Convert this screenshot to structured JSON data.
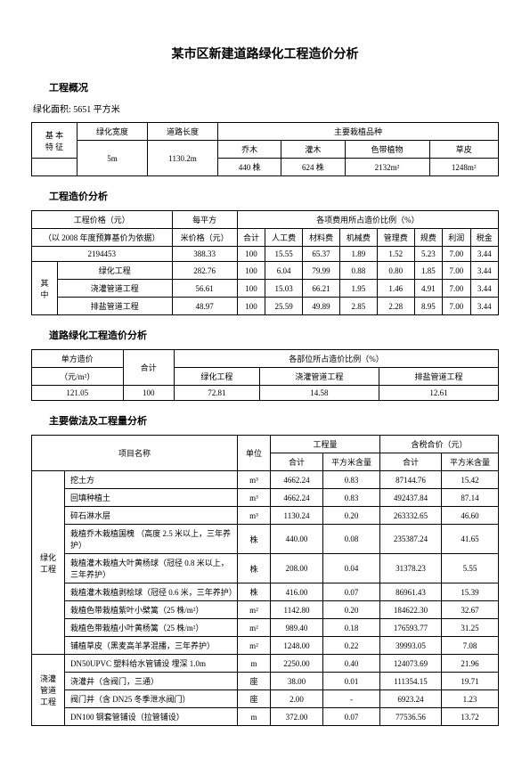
{
  "title": "某市区新建道路绿化工程造价分析",
  "sec1": {
    "heading": "工程概况",
    "areaLine": "绿化面积: 5651 平方米",
    "h_basic": "基 本\n特 征",
    "h_width": "绿化宽度",
    "h_length": "道路长度",
    "h_species": "主要栽植品种",
    "h_tree": "乔木",
    "h_shrub": "灌木",
    "h_colorband": "色带植物",
    "h_turf": "草皮",
    "v_width": "5m",
    "v_length": "1130.2m",
    "v_tree": "440 株",
    "v_shrub": "624 株",
    "v_colorband": "2132m²",
    "v_turf": "1248m²"
  },
  "sec2": {
    "heading": "工程造价分析",
    "h_price": "工程价格（元）",
    "h_basis": "（以 2008 年度预算基价为依据）",
    "h_sqm": "每平方",
    "h_sqm2": "米价格（元）",
    "h_ratio": "各项费用所占造价比例（%）",
    "c_total": "合计",
    "c_labor": "人工费",
    "c_material": "材料费",
    "c_machine": "机械费",
    "c_manage": "管理费",
    "c_fee": "规费",
    "c_profit": "利润",
    "c_tax": "税金",
    "row_total": {
      "price": "2194453",
      "sqm": "388.33",
      "a": "100",
      "b": "15.55",
      "c": "65.37",
      "d": "1.89",
      "e": "1.52",
      "f": "5.23",
      "g": "7.00",
      "h": "3.44"
    },
    "label_qz": "其\n中",
    "row_green": {
      "name": "绿化工程",
      "sqm": "282.76",
      "a": "100",
      "b": "6.04",
      "c": "79.99",
      "d": "0.88",
      "e": "0.80",
      "f": "1.85",
      "g": "7.00",
      "h": "3.44"
    },
    "row_irri": {
      "name": "浇灌管道工程",
      "sqm": "56.61",
      "a": "100",
      "b": "15.03",
      "c": "66.21",
      "d": "1.95",
      "e": "1.46",
      "f": "4.91",
      "g": "7.00",
      "h": "3.44"
    },
    "row_drain": {
      "name": "排盐管道工程",
      "sqm": "48.97",
      "a": "100",
      "b": "25.59",
      "c": "49.89",
      "d": "2.85",
      "e": "2.28",
      "f": "8.95",
      "g": "7.00",
      "h": "3.44"
    }
  },
  "sec3": {
    "heading": "道路绿化工程造价分析",
    "h_unit": "单方造价",
    "h_unit2": "（元/m²）",
    "h_total": "合计",
    "h_ratio": "各部位所占造价比例（%）",
    "c_green": "绿化工程",
    "c_irri": "浇灌管道工程",
    "c_drain": "排盐管道工程",
    "v_unit": "121.05",
    "v_total": "100",
    "v_green": "72.81",
    "v_irri": "14.58",
    "v_drain": "12.61"
  },
  "sec4": {
    "heading": "主要做法及工程量分析",
    "h_item": "项目名称",
    "h_unit": "单位",
    "h_qty": "工程量",
    "h_cost": "含税合价（元）",
    "h_total": "合计",
    "h_persqm": "平方米含量",
    "g_green": "绿化\n工程",
    "g_irri": "浇灌\n管道\n工程",
    "rows": [
      {
        "n": "挖土方",
        "u": "m³",
        "q": "4662.24",
        "p": "0.83",
        "c": "87144.76",
        "cp": "15.42"
      },
      {
        "n": "回填种植土",
        "u": "m³",
        "q": "4662.24",
        "p": "0.83",
        "c": "492437.84",
        "cp": "87.14"
      },
      {
        "n": "碎石淋水层",
        "u": "m³",
        "q": "1130.24",
        "p": "0.20",
        "c": "263332.65",
        "cp": "46.60"
      },
      {
        "n": "栽植乔木栽植国槐 （高度 2.5 米以上，三年养护）",
        "u": "株",
        "q": "440.00",
        "p": "0.08",
        "c": "235387.24",
        "cp": "41.65"
      },
      {
        "n": "栽植灌木栽植大叶黄杨球（冠径 0.8 米以上，三年养护）",
        "u": "株",
        "q": "208.00",
        "p": "0.04",
        "c": "31378.23",
        "cp": "5.55"
      },
      {
        "n": "栽植灌木栽植剥桧球（冠径 0.6 米，三年养护）",
        "u": "株",
        "q": "416.00",
        "p": "0.07",
        "c": "86961.43",
        "cp": "15.39"
      },
      {
        "n": "栽植色带栽植紫叶小檗篱（25 株/m²）",
        "u": "m²",
        "q": "1142.80",
        "p": "0.20",
        "c": "184622.30",
        "cp": "32.67"
      },
      {
        "n": "栽植色带栽植小叶黄杨篱（25 株/m²）",
        "u": "m²",
        "q": "989.40",
        "p": "0.18",
        "c": "176593.77",
        "cp": "31.25"
      },
      {
        "n": "铺植草皮（黑麦高羊茅混播，三年养护）",
        "u": "m²",
        "q": "1248.00",
        "p": "0.22",
        "c": "39993.05",
        "cp": "7.08"
      },
      {
        "n": "DN50UPVC 塑料给水管铺设 埋深 1.0m",
        "u": "m",
        "q": "2250.00",
        "p": "0.40",
        "c": "124073.69",
        "cp": "21.96"
      },
      {
        "n": "浇灌井（含阀门，三通）",
        "u": "座",
        "q": "38.00",
        "p": "0.01",
        "c": "111354.15",
        "cp": "19.71"
      },
      {
        "n": "阀门井（含 DN25 冬季泄水阀门）",
        "u": "座",
        "q": "2.00",
        "p": "-",
        "c": "6923.24",
        "cp": "1.23"
      },
      {
        "n": "DN100 钢套管铺设（拉管铺设）",
        "u": "m",
        "q": "372.00",
        "p": "0.07",
        "c": "77536.56",
        "cp": "13.72"
      }
    ]
  }
}
